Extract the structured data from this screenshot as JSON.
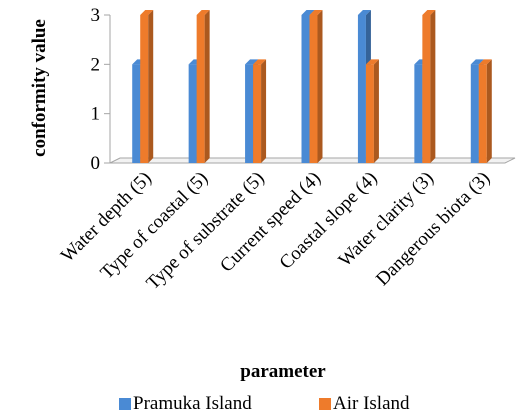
{
  "chart_data": {
    "type": "bar",
    "categories": [
      "Water depth (5)",
      "Type of coastal (5)",
      "Type of substrate (5)",
      "Current speed (4)",
      "Coastal slope (4)",
      "Water clarity (3)",
      "Dangerous biota (3)"
    ],
    "series": [
      {
        "name": "Pramuka Island",
        "values": [
          2,
          2,
          2,
          3,
          3,
          2,
          2
        ],
        "color": "#4a8ad4"
      },
      {
        "name": "Air Island",
        "values": [
          3,
          3,
          2,
          3,
          2,
          3,
          2
        ],
        "color": "#ee7b2b"
      }
    ],
    "title": "",
    "xlabel": "parameter",
    "ylabel": "conformity value",
    "ylim": [
      0,
      3
    ],
    "yticks": [
      "0",
      "1",
      "2",
      "3"
    ],
    "grid": false,
    "legend_position": "bottom"
  }
}
